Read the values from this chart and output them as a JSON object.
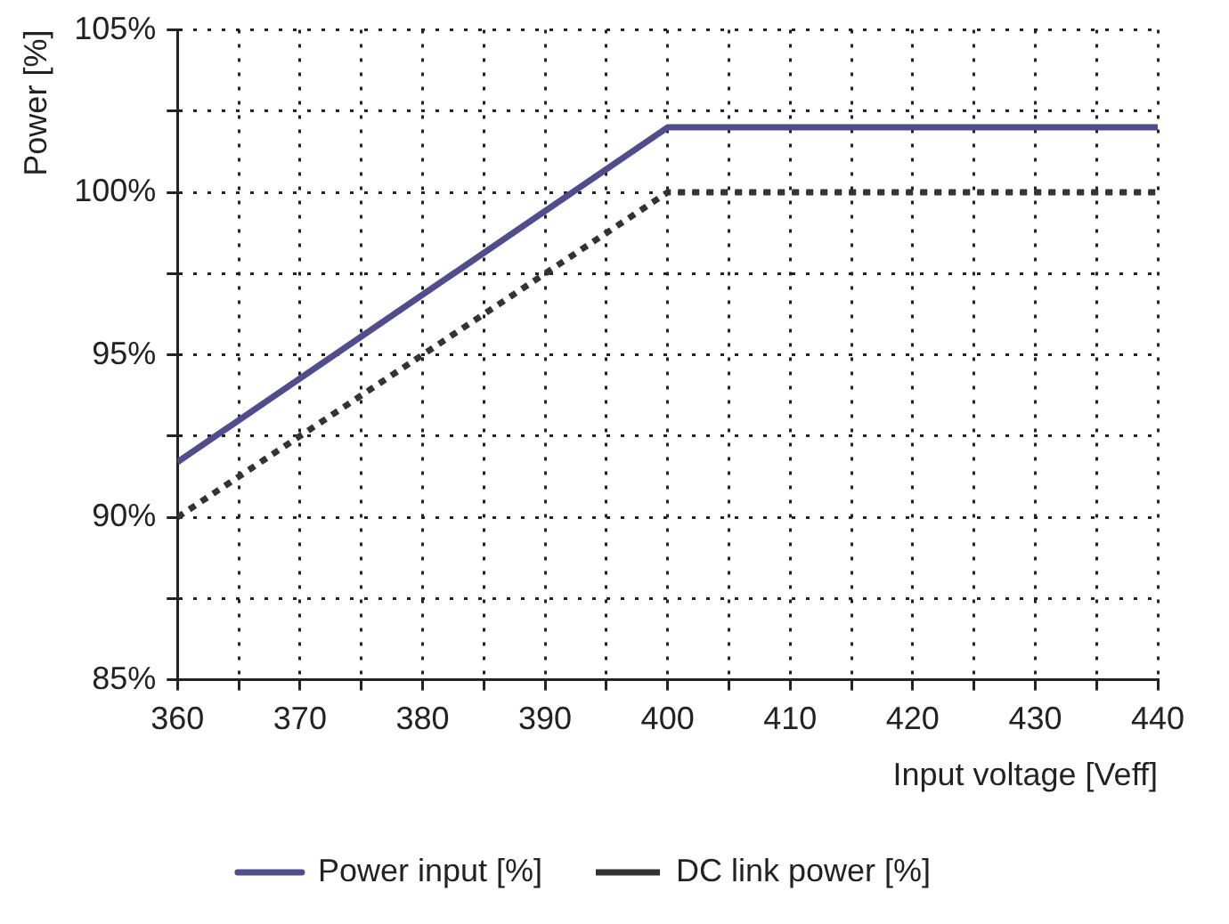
{
  "chart_data": {
    "type": "line",
    "xlabel": "Input voltage [Veff]",
    "ylabel": "Power [%]",
    "x": [
      360,
      400,
      440
    ],
    "series": [
      {
        "name": "Power input [%]",
        "color": "#4f4d8c",
        "values": [
          91.7,
          102,
          102
        ],
        "line_style": "solid"
      },
      {
        "name": "DC link power [%]",
        "color": "#333333",
        "values": [
          90,
          100,
          100
        ],
        "line_style": "dotted"
      }
    ],
    "xlim": [
      360,
      440
    ],
    "xticks": [
      360,
      {
        "value": 365,
        "label": null
      },
      370,
      {
        "value": 375,
        "label": null
      },
      380,
      {
        "value": 385,
        "label": null
      },
      390,
      {
        "value": 395,
        "label": null
      },
      400,
      {
        "value": 405,
        "label": null
      },
      410,
      {
        "value": 415,
        "label": null
      },
      420,
      {
        "value": 425,
        "label": null
      },
      430,
      {
        "value": 435,
        "label": null
      },
      440
    ],
    "ylim": [
      85,
      105
    ],
    "yticks": [
      {
        "value": 85,
        "label": "85%"
      },
      {
        "value": 87.5,
        "label": null
      },
      {
        "value": 90,
        "label": "90%"
      },
      {
        "value": 92.5,
        "label": null
      },
      {
        "value": 95,
        "label": "95%"
      },
      {
        "value": 97.5,
        "label": null
      },
      {
        "value": 100,
        "label": "100%"
      },
      {
        "value": 102.5,
        "label": null
      },
      {
        "value": 105,
        "label": "105%"
      }
    ],
    "grid": true,
    "legend": "bottom",
    "marker": "none"
  }
}
